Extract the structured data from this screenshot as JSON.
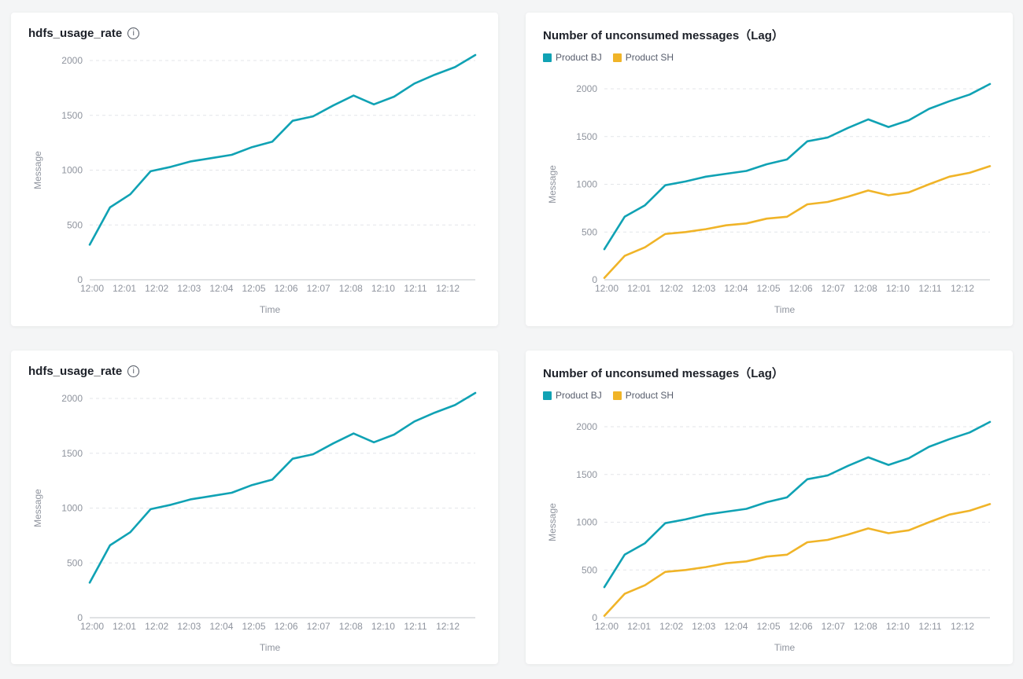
{
  "page": {
    "background": "#f4f5f6",
    "card_background": "#ffffff"
  },
  "colors": {
    "teal": "#10a2b4",
    "yellow": "#f0b428",
    "title_text": "#1d2129",
    "legend_text": "#575d6c",
    "axis_text": "#8f949e",
    "grid_line": "#e3e5e9",
    "axis_line": "#c2c5ca"
  },
  "chart_data": [
    {
      "position": "top-left",
      "type": "line",
      "title": "hdfs_usage_rate",
      "has_info_icon": true,
      "info_icon_glyph": "i",
      "xlabel": "Time",
      "ylabel": "Message",
      "ylim": [
        0,
        2200
      ],
      "yticks": [
        0,
        500,
        1000,
        1500,
        2000
      ],
      "grid": "dashed-horizontal",
      "x_tick_labels": [
        "12:00",
        "12:01",
        "12:02",
        "12:03",
        "12:04",
        "12:05",
        "12:06",
        "12:07",
        "12:08",
        "12:10",
        "12:11",
        "12:12"
      ],
      "legend": null,
      "series": [
        {
          "name": "hdfs_usage_rate",
          "color": "#10a2b4",
          "values": [
            320,
            660,
            780,
            990,
            1030,
            1080,
            1110,
            1140,
            1210,
            1260,
            1450,
            1490,
            1590,
            1680,
            1600,
            1670,
            1790,
            1870,
            1940,
            2050
          ]
        }
      ]
    },
    {
      "position": "top-right",
      "type": "line",
      "title": "Number of unconsumed messages（Lag）",
      "has_info_icon": false,
      "xlabel": "Time",
      "ylabel": "Message",
      "ylim": [
        0,
        2200
      ],
      "yticks": [
        0,
        500,
        1000,
        1500,
        2000
      ],
      "grid": "dashed-horizontal",
      "x_tick_labels": [
        "12:00",
        "12:01",
        "12:02",
        "12:03",
        "12:04",
        "12:05",
        "12:06",
        "12:07",
        "12:08",
        "12:10",
        "12:11",
        "12:12"
      ],
      "legend": [
        "Product BJ",
        "Product SH"
      ],
      "legend_position": "top-left",
      "series": [
        {
          "name": "Product BJ",
          "color": "#10a2b4",
          "values": [
            320,
            660,
            780,
            990,
            1030,
            1080,
            1110,
            1140,
            1210,
            1260,
            1450,
            1490,
            1590,
            1680,
            1600,
            1670,
            1790,
            1870,
            1940,
            2050
          ]
        },
        {
          "name": "Product SH",
          "color": "#f0b428",
          "values": [
            20,
            250,
            340,
            480,
            500,
            530,
            570,
            590,
            640,
            660,
            790,
            815,
            870,
            935,
            885,
            915,
            1000,
            1080,
            1120,
            1190
          ]
        }
      ]
    },
    {
      "position": "bottom-left",
      "type": "line",
      "title": "hdfs_usage_rate",
      "has_info_icon": true,
      "info_icon_glyph": "i",
      "xlabel": "Time",
      "ylabel": "Message",
      "ylim": [
        0,
        2200
      ],
      "yticks": [
        0,
        500,
        1000,
        1500,
        2000
      ],
      "grid": "dashed-horizontal",
      "x_tick_labels": [
        "12:00",
        "12:01",
        "12:02",
        "12:03",
        "12:04",
        "12:05",
        "12:06",
        "12:07",
        "12:08",
        "12:10",
        "12:11",
        "12:12"
      ],
      "legend": null,
      "series": [
        {
          "name": "hdfs_usage_rate",
          "color": "#10a2b4",
          "values": [
            320,
            660,
            780,
            990,
            1030,
            1080,
            1110,
            1140,
            1210,
            1260,
            1450,
            1490,
            1590,
            1680,
            1600,
            1670,
            1790,
            1870,
            1940,
            2050
          ]
        }
      ]
    },
    {
      "position": "bottom-right",
      "type": "line",
      "title": "Number of unconsumed messages（Lag）",
      "has_info_icon": false,
      "xlabel": "Time",
      "ylabel": "Message",
      "ylim": [
        0,
        2200
      ],
      "yticks": [
        0,
        500,
        1000,
        1500,
        2000
      ],
      "grid": "dashed-horizontal",
      "x_tick_labels": [
        "12:00",
        "12:01",
        "12:02",
        "12:03",
        "12:04",
        "12:05",
        "12:06",
        "12:07",
        "12:08",
        "12:10",
        "12:11",
        "12:12"
      ],
      "legend": [
        "Product BJ",
        "Product SH"
      ],
      "legend_position": "top-left",
      "series": [
        {
          "name": "Product BJ",
          "color": "#10a2b4",
          "values": [
            320,
            660,
            780,
            990,
            1030,
            1080,
            1110,
            1140,
            1210,
            1260,
            1450,
            1490,
            1590,
            1680,
            1600,
            1670,
            1790,
            1870,
            1940,
            2050
          ]
        },
        {
          "name": "Product SH",
          "color": "#f0b428",
          "values": [
            20,
            250,
            340,
            480,
            500,
            530,
            570,
            590,
            640,
            660,
            790,
            815,
            870,
            935,
            885,
            915,
            1000,
            1080,
            1120,
            1190
          ]
        }
      ]
    }
  ]
}
